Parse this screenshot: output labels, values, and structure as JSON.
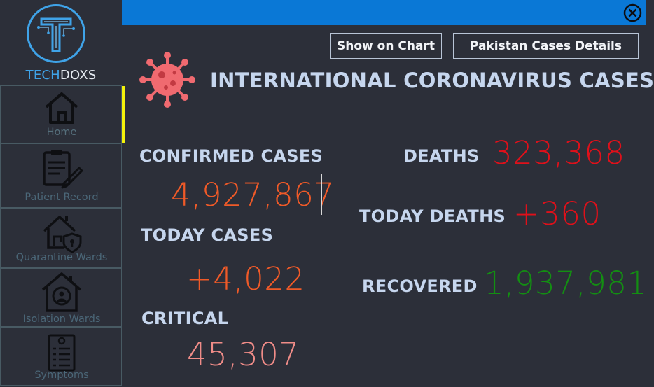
{
  "brand": {
    "part1": "TECH",
    "part2": "DOXS"
  },
  "sidebar": {
    "items": [
      {
        "label": "Home",
        "icon": "home-icon"
      },
      {
        "label": "Patient Record",
        "icon": "clipboard-pen-icon"
      },
      {
        "label": "Quarantine Wards",
        "icon": "house-shield-icon"
      },
      {
        "label": "Isolation Wards",
        "icon": "house-person-icon"
      },
      {
        "label": "Symptoms",
        "icon": "checklist-icon"
      }
    ]
  },
  "toolbar": {
    "show_chart_label": "Show on Chart",
    "pakistan_label": "Pakistan Cases Details"
  },
  "main": {
    "title": "INTERNATIONAL CORONAVIRUS CASES",
    "stats": {
      "confirmed": {
        "label": "CONFIRMED CASES",
        "value": "4,927,867"
      },
      "today_cases": {
        "label": "TODAY CASES",
        "value": "+4,022"
      },
      "critical": {
        "label": "CRITICAL",
        "value": "45,307"
      },
      "deaths": {
        "label": "DEATHS",
        "value": "323,368"
      },
      "today_deaths": {
        "label": "TODAY DEATHS",
        "value": "+360"
      },
      "recovered": {
        "label": "RECOVERED",
        "value": "1,937,981"
      }
    }
  },
  "colors": {
    "background": "#2c2f39",
    "topbar": "#0a78d6",
    "active_indicator": "#f3f20b",
    "label": "#c6d6ee",
    "confirmed": "#f05a28",
    "today_cases": "#f05a28",
    "critical": "#f08c88",
    "deaths": "#e0101a",
    "recovered": "#138f12",
    "brand_blue": "#3fa3e8"
  }
}
